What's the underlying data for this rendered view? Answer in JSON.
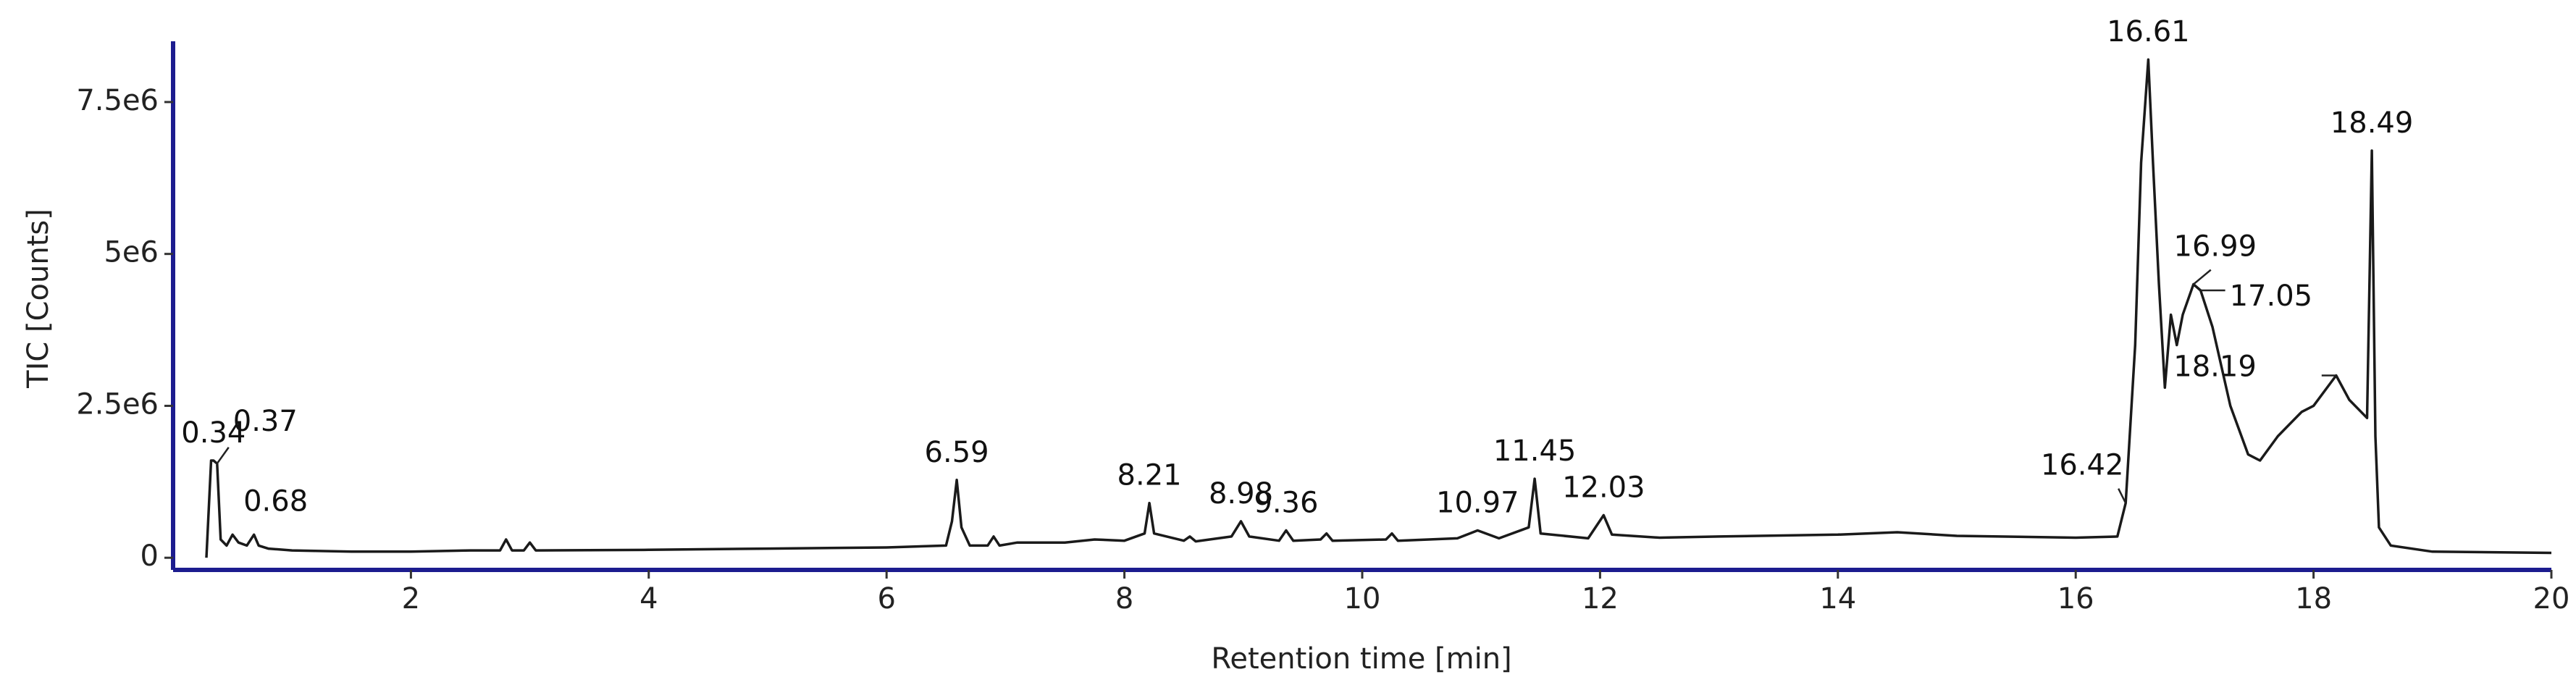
{
  "chart_data": {
    "type": "line",
    "x_label": "Retention time [min]",
    "y_label": "TIC [Counts]",
    "color": "#1a1a1a",
    "axis_color": "#1c1c8f",
    "xlim": [
      0,
      20
    ],
    "ylim": [
      -200000,
      8500000
    ],
    "xticks": [
      2,
      4,
      6,
      8,
      10,
      12,
      14,
      16,
      18,
      20
    ],
    "yticks": [
      0,
      {
        "value": 2500000,
        "label": "2.5e6"
      },
      {
        "value": 5000000,
        "label": "5e6"
      },
      {
        "value": 7500000,
        "label": "7.5e6"
      }
    ],
    "x": [
      0.28,
      0.32,
      0.34,
      0.37,
      0.4,
      0.45,
      0.5,
      0.55,
      0.62,
      0.68,
      0.72,
      0.8,
      1.0,
      1.5,
      2.0,
      2.5,
      2.75,
      2.8,
      2.85,
      2.95,
      3.0,
      3.05,
      4.0,
      5.0,
      6.0,
      6.5,
      6.55,
      6.59,
      6.63,
      6.7,
      6.85,
      6.9,
      6.95,
      7.1,
      7.5,
      7.75,
      8.0,
      8.17,
      8.21,
      8.25,
      8.5,
      8.55,
      8.6,
      8.9,
      8.98,
      9.05,
      9.3,
      9.36,
      9.42,
      9.65,
      9.7,
      9.75,
      10.2,
      10.25,
      10.3,
      10.8,
      10.97,
      11.15,
      11.4,
      11.45,
      11.5,
      11.9,
      12.03,
      12.1,
      12.5,
      13.0,
      14.0,
      14.5,
      15.0,
      16.0,
      16.35,
      16.42,
      16.5,
      16.55,
      16.61,
      16.65,
      16.7,
      16.75,
      16.8,
      16.85,
      16.9,
      16.99,
      17.05,
      17.15,
      17.3,
      17.45,
      17.55,
      17.7,
      17.9,
      18.0,
      18.19,
      18.3,
      18.45,
      18.49,
      18.52,
      18.55,
      18.65,
      19.0,
      20.0
    ],
    "values": [
      0,
      1600000,
      1600000,
      1550000,
      300000,
      200000,
      380000,
      250000,
      200000,
      380000,
      200000,
      150000,
      120000,
      100000,
      100000,
      120000,
      120000,
      300000,
      120000,
      120000,
      250000,
      120000,
      130000,
      150000,
      170000,
      200000,
      600000,
      1280000,
      500000,
      200000,
      200000,
      350000,
      200000,
      250000,
      250000,
      300000,
      280000,
      400000,
      900000,
      400000,
      280000,
      350000,
      270000,
      350000,
      600000,
      350000,
      280000,
      450000,
      280000,
      300000,
      400000,
      280000,
      300000,
      400000,
      280000,
      320000,
      450000,
      320000,
      500000,
      1300000,
      400000,
      320000,
      700000,
      380000,
      330000,
      350000,
      380000,
      420000,
      360000,
      330000,
      350000,
      900000,
      3500000,
      6500000,
      8200000,
      6500000,
      4500000,
      2800000,
      4000000,
      3500000,
      4000000,
      4500000,
      4400000,
      3800000,
      2500000,
      1700000,
      1600000,
      2000000,
      2400000,
      2500000,
      3000000,
      2600000,
      2300000,
      6700000,
      2000000,
      500000,
      200000,
      100000,
      80000
    ],
    "peak_labels": [
      0.34,
      0.37,
      0.68,
      6.59,
      8.21,
      8.98,
      9.36,
      10.97,
      11.45,
      12.03,
      16.42,
      16.61,
      16.99,
      17.05,
      18.19,
      18.49
    ]
  }
}
